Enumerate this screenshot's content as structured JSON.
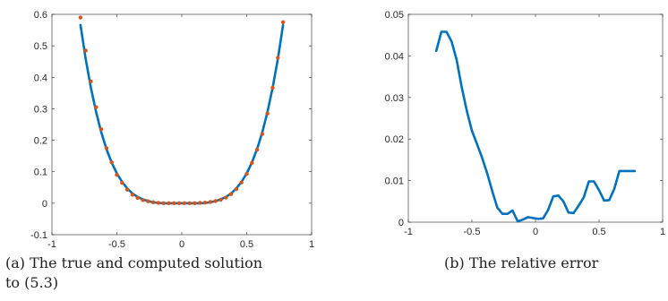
{
  "captions": {
    "a": "(a)  The true and computed solution to (5.3)",
    "b": "(b)  The relative error"
  },
  "colors": {
    "line": "#0072BD",
    "dots": "#D95319",
    "axis": "#262626"
  },
  "chart_data": [
    {
      "type": "line",
      "title": "",
      "xlabel": "",
      "ylabel": "",
      "xlim": [
        -1,
        1
      ],
      "ylim": [
        -0.1,
        0.6
      ],
      "xticks": [
        -1,
        -0.5,
        0,
        0.5,
        1
      ],
      "xtick_labels": [
        "-1",
        "-0.5",
        "0",
        "0.5",
        "1"
      ],
      "yticks": [
        -0.1,
        0,
        0.1,
        0.2,
        0.3,
        0.4,
        0.5,
        0.6
      ],
      "ytick_labels": [
        "-0.1",
        "0",
        "0.1",
        "0.2",
        "0.3",
        "0.4",
        "0.5",
        "0.6"
      ],
      "grid": false,
      "series": [
        {
          "style": "solid-line",
          "x": [
            -0.78,
            -0.74,
            -0.7,
            -0.66,
            -0.62,
            -0.58,
            -0.54,
            -0.5,
            -0.46,
            -0.42,
            -0.38,
            -0.34,
            -0.3,
            -0.26,
            -0.22,
            -0.18,
            -0.14,
            -0.1,
            -0.06,
            -0.02,
            0.02,
            0.06,
            0.1,
            0.14,
            0.18,
            0.22,
            0.26,
            0.3,
            0.34,
            0.38,
            0.42,
            0.46,
            0.5,
            0.54,
            0.58,
            0.62,
            0.66,
            0.7,
            0.74,
            0.78
          ],
          "y": [
            0.566,
            0.458,
            0.367,
            0.29,
            0.225,
            0.172,
            0.129,
            0.095,
            0.068,
            0.047,
            0.031,
            0.02,
            0.012,
            0.007,
            0.003,
            0.001,
            0.0,
            0.0,
            0.0,
            0.0,
            0.0,
            0.0,
            0.0,
            0.0,
            0.001,
            0.003,
            0.007,
            0.012,
            0.02,
            0.031,
            0.047,
            0.068,
            0.095,
            0.129,
            0.172,
            0.225,
            0.29,
            0.367,
            0.458,
            0.566
          ]
        },
        {
          "style": "dots",
          "x": [
            -0.78,
            -0.74,
            -0.7,
            -0.66,
            -0.62,
            -0.58,
            -0.54,
            -0.5,
            -0.46,
            -0.42,
            -0.38,
            -0.34,
            -0.3,
            -0.26,
            -0.22,
            -0.18,
            -0.14,
            -0.1,
            -0.06,
            -0.02,
            0.02,
            0.06,
            0.1,
            0.14,
            0.18,
            0.22,
            0.26,
            0.3,
            0.34,
            0.38,
            0.42,
            0.46,
            0.5,
            0.54,
            0.58,
            0.62,
            0.66,
            0.7,
            0.74,
            0.78
          ],
          "y": [
            0.59,
            0.485,
            0.387,
            0.305,
            0.235,
            0.175,
            0.13,
            0.09,
            0.065,
            0.043,
            0.027,
            0.017,
            0.01,
            0.006,
            0.003,
            0.001,
            0.0,
            0.0,
            0.0,
            0.0,
            0.0,
            0.0,
            0.0,
            0.001,
            0.002,
            0.004,
            0.007,
            0.011,
            0.018,
            0.029,
            0.045,
            0.066,
            0.093,
            0.128,
            0.17,
            0.22,
            0.285,
            0.367,
            0.462,
            0.575
          ]
        }
      ]
    },
    {
      "type": "line",
      "title": "",
      "xlabel": "",
      "ylabel": "",
      "xlim": [
        -1,
        1
      ],
      "ylim": [
        0,
        0.05
      ],
      "xticks": [
        -1,
        -0.5,
        0,
        0.5,
        1
      ],
      "xtick_labels": [
        "-1",
        "-0.5",
        "0",
        "0.5",
        "1"
      ],
      "yticks": [
        0,
        0.01,
        0.02,
        0.03,
        0.04,
        0.05
      ],
      "ytick_labels": [
        "0",
        "0.01",
        "0.02",
        "0.03",
        "0.04",
        "0.05"
      ],
      "grid": false,
      "series": [
        {
          "style": "solid-line",
          "x": [
            -0.78,
            -0.74,
            -0.7,
            -0.66,
            -0.62,
            -0.58,
            -0.54,
            -0.5,
            -0.46,
            -0.42,
            -0.38,
            -0.34,
            -0.3,
            -0.26,
            -0.22,
            -0.18,
            -0.14,
            -0.1,
            -0.06,
            -0.02,
            0.02,
            0.06,
            0.1,
            0.14,
            0.18,
            0.22,
            0.26,
            0.3,
            0.34,
            0.38,
            0.42,
            0.46,
            0.5,
            0.54,
            0.58,
            0.62,
            0.66,
            0.7,
            0.74,
            0.78
          ],
          "y": [
            0.0412,
            0.0458,
            0.0458,
            0.0435,
            0.039,
            0.0325,
            0.0268,
            0.022,
            0.0188,
            0.0155,
            0.0118,
            0.0075,
            0.0035,
            0.002,
            0.002,
            0.0028,
            0.0002,
            0.0006,
            0.0012,
            0.001,
            0.0008,
            0.0009,
            0.003,
            0.0062,
            0.0064,
            0.005,
            0.0023,
            0.0022,
            0.004,
            0.006,
            0.0098,
            0.0098,
            0.0077,
            0.0052,
            0.0053,
            0.008,
            0.0123,
            0.0123,
            0.0123,
            0.0123
          ]
        }
      ]
    }
  ]
}
